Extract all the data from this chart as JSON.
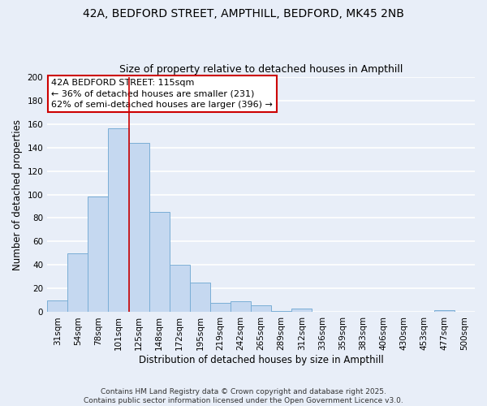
{
  "title": "42A, BEDFORD STREET, AMPTHILL, BEDFORD, MK45 2NB",
  "subtitle": "Size of property relative to detached houses in Ampthill",
  "xlabel": "Distribution of detached houses by size in Ampthill",
  "ylabel": "Number of detached properties",
  "bar_labels": [
    "31sqm",
    "54sqm",
    "78sqm",
    "101sqm",
    "125sqm",
    "148sqm",
    "172sqm",
    "195sqm",
    "219sqm",
    "242sqm",
    "265sqm",
    "289sqm",
    "312sqm",
    "336sqm",
    "359sqm",
    "383sqm",
    "406sqm",
    "430sqm",
    "453sqm",
    "477sqm",
    "500sqm"
  ],
  "bar_values": [
    10,
    50,
    98,
    156,
    144,
    85,
    40,
    25,
    8,
    9,
    6,
    1,
    3,
    0,
    0,
    0,
    0,
    0,
    0,
    2,
    0
  ],
  "bar_color": "#c5d8f0",
  "bar_edge_color": "#7aaed6",
  "background_color": "#e8eef8",
  "grid_color": "#ffffff",
  "ylim": [
    0,
    200
  ],
  "yticks": [
    0,
    20,
    40,
    60,
    80,
    100,
    120,
    140,
    160,
    180,
    200
  ],
  "annotation_title": "42A BEDFORD STREET: 115sqm",
  "annotation_line1": "← 36% of detached houses are smaller (231)",
  "annotation_line2": "62% of semi-detached houses are larger (396) →",
  "vline_x_pos": 3.5,
  "footer_line1": "Contains HM Land Registry data © Crown copyright and database right 2025.",
  "footer_line2": "Contains public sector information licensed under the Open Government Licence v3.0.",
  "title_fontsize": 10,
  "subtitle_fontsize": 9,
  "axis_label_fontsize": 8.5,
  "tick_fontsize": 7.5,
  "annotation_fontsize": 8,
  "footer_fontsize": 6.5
}
